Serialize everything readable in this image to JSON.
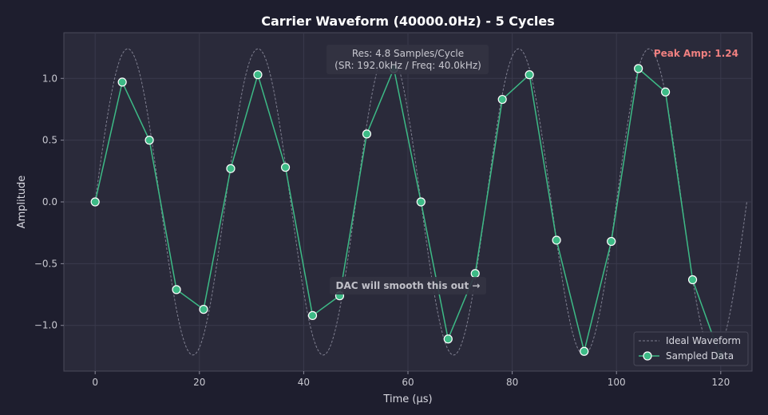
{
  "chart_data": {
    "type": "line",
    "title": "Carrier Waveform (40000.0Hz) - 5 Cycles",
    "xlabel": "Time (μs)",
    "ylabel": "Amplitude",
    "xlim": [
      -6,
      126
    ],
    "ylim": [
      -1.37,
      1.37
    ],
    "x_ticks": [
      0,
      20,
      40,
      60,
      80,
      100,
      120
    ],
    "y_ticks": [
      -1.0,
      -0.5,
      0.0,
      0.5,
      1.0
    ],
    "grid": true,
    "legend_position": "bottom-right",
    "ideal_waveform": {
      "name": "Ideal Waveform",
      "amplitude": 1.24,
      "frequency_hz": 40000.0,
      "x_range": [
        0,
        125
      ],
      "color": "#7f7f90",
      "style": "dashed"
    },
    "series": [
      {
        "name": "Sampled Data",
        "color": "#3dba86",
        "x": [
          0,
          5.2,
          10.4,
          15.6,
          20.8,
          26.0,
          31.2,
          36.5,
          41.7,
          46.9,
          52.1,
          57.3,
          62.5,
          67.7,
          72.9,
          78.1,
          83.3,
          88.5,
          93.8,
          99.0,
          104.2,
          109.4,
          114.6,
          119.8
        ],
        "y": [
          0.0,
          0.97,
          0.5,
          -0.71,
          -0.87,
          0.27,
          1.03,
          0.28,
          -0.92,
          -0.76,
          0.55,
          1.08,
          0.0,
          -1.11,
          -0.58,
          0.83,
          1.03,
          -0.31,
          -1.21,
          -0.32,
          1.08,
          0.89,
          -0.63,
          -1.24
        ]
      }
    ],
    "annotations": {
      "resolution_line1": "Res: 4.8 Samples/Cycle",
      "resolution_line2": "(SR: 192.0kHz / Freq: 40.0kHz)",
      "peak": "Peak Amp: 1.24",
      "dac_note": "DAC will smooth this out →"
    },
    "colors": {
      "background": "#1e1e2e",
      "plot_background": "#2a2a3a",
      "peak_text": "#f08080",
      "text": "#d8d8e0"
    }
  }
}
